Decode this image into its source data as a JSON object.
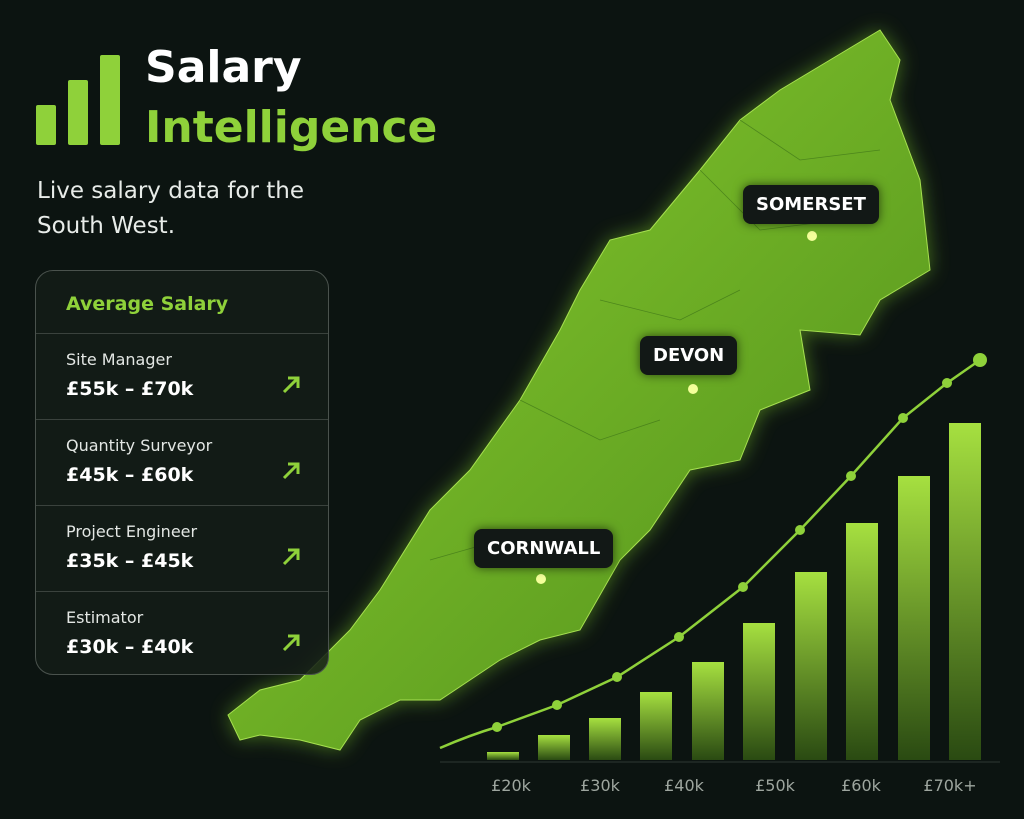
{
  "header": {
    "title_line1": "Salary",
    "title_line2": "Intelligence",
    "subtitle": "Live salary data for the South West."
  },
  "card": {
    "title": "Average Salary",
    "rows": [
      {
        "role": "Site Manager",
        "range": "£55k – £70k"
      },
      {
        "role": "Quantity Surveyor",
        "range": "£45k – £60k"
      },
      {
        "role": "Project Engineer",
        "range": "£35k – £45k"
      },
      {
        "role": "Estimator",
        "range": "£30k – £40k"
      }
    ]
  },
  "map": {
    "labels": [
      "SOMERSET",
      "DEVON",
      "CORNWALL"
    ]
  },
  "chart": {
    "x_labels": [
      "£20k",
      "£30k",
      "£40k",
      "£50k",
      "£60k",
      "£70k+"
    ]
  }
}
